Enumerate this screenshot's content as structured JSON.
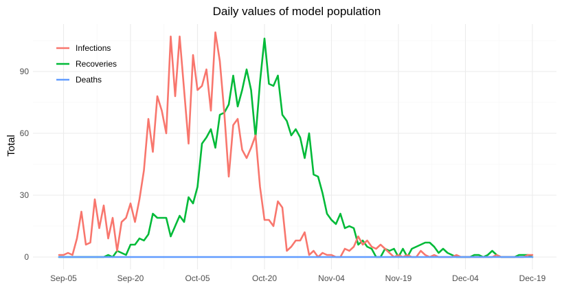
{
  "chart_data": {
    "type": "line",
    "title": "Daily values of model population",
    "xlabel": "",
    "ylabel": "Total",
    "ylim": [
      -6,
      113
    ],
    "yticks": [
      0,
      30,
      60,
      90
    ],
    "xticks": [
      "Sep-05",
      "Sep-20",
      "Oct-05",
      "Oct-20",
      "Nov-04",
      "Nov-19",
      "Dec-04",
      "Dec-19"
    ],
    "x_range_days": [
      "Sep-04",
      "Dec-19"
    ],
    "grid": true,
    "legend_position": "top-left",
    "series": [
      {
        "name": "Infections",
        "color": "#F8766D",
        "values": [
          1,
          1,
          2,
          1,
          9,
          22,
          6,
          7,
          28,
          14,
          25,
          9,
          19,
          3,
          17,
          19,
          26,
          17,
          28,
          42,
          67,
          51,
          78,
          71,
          60,
          107,
          78,
          107,
          81,
          55,
          98,
          81,
          83,
          91,
          71,
          109,
          95,
          70,
          39,
          64,
          67,
          52,
          48,
          53,
          59,
          34,
          18,
          18,
          15,
          27,
          24,
          3,
          5,
          8,
          8,
          12,
          1,
          3,
          0,
          2,
          1,
          1,
          0,
          0,
          4,
          3,
          5,
          10,
          6,
          8,
          5,
          4,
          6,
          4,
          2,
          0,
          1,
          0,
          1,
          0,
          0,
          3,
          1,
          0,
          1,
          0,
          0,
          0,
          0,
          1,
          0,
          0,
          0,
          0,
          0,
          0,
          0,
          0,
          1,
          0,
          0,
          0,
          0,
          0,
          0,
          1,
          1
        ]
      },
      {
        "name": "Recoveries",
        "color": "#00BA38",
        "values": [
          0,
          0,
          0,
          0,
          0,
          0,
          0,
          0,
          0,
          0,
          0,
          1,
          0,
          3,
          2,
          1,
          6,
          6,
          9,
          8,
          11,
          21,
          19,
          19,
          19,
          10,
          15,
          20,
          17,
          29,
          26,
          34,
          55,
          58,
          62,
          53,
          69,
          70,
          74,
          88,
          73,
          81,
          91,
          81,
          58,
          85,
          106,
          84,
          83,
          88,
          69,
          66,
          59,
          62,
          58,
          48,
          60,
          40,
          39,
          31,
          21,
          18,
          16,
          21,
          14,
          15,
          14,
          6,
          8,
          5,
          4,
          0,
          0,
          4,
          3,
          4,
          0,
          4,
          0,
          4,
          5,
          6,
          7,
          7,
          5,
          2,
          4,
          2,
          1,
          0,
          0,
          0,
          0,
          1,
          1,
          0,
          1,
          3,
          1,
          0,
          0,
          0,
          0,
          1,
          1,
          1,
          0
        ]
      },
      {
        "name": "Deaths",
        "color": "#619CFF",
        "values": [
          0,
          0,
          0,
          0,
          0,
          0,
          0,
          0,
          0,
          0,
          0,
          0,
          0,
          0,
          0,
          0,
          0,
          0,
          0,
          0,
          0,
          0,
          0,
          0,
          0,
          0,
          0,
          0,
          0,
          0,
          0,
          0,
          0,
          0,
          0,
          0,
          0,
          0,
          0,
          0,
          0,
          0,
          0,
          0,
          0,
          0,
          0,
          0,
          0,
          0,
          0,
          0,
          0,
          0,
          0,
          0,
          0,
          0,
          0,
          0,
          0,
          0,
          0,
          0,
          0,
          0,
          0,
          0,
          0,
          0,
          0,
          0,
          0,
          0,
          0,
          0,
          0,
          0,
          0,
          0,
          0,
          0,
          0,
          0,
          0,
          0,
          0,
          0,
          0,
          0,
          0,
          0,
          0,
          0,
          0,
          0,
          0,
          0,
          0,
          0,
          0,
          0,
          0,
          0,
          0,
          0,
          0
        ]
      }
    ]
  }
}
